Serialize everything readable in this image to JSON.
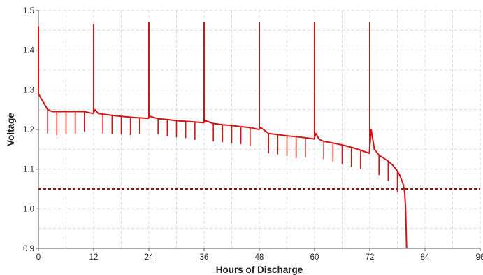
{
  "chart_data": {
    "type": "line",
    "xlabel": "Hours of Discharge",
    "ylabel": "Voltage",
    "xlim": [
      0,
      96
    ],
    "ylim": [
      0.9,
      1.5
    ],
    "x_ticks": [
      "0",
      "12",
      "24",
      "36",
      "48",
      "60",
      "72",
      "84",
      "96"
    ],
    "y_ticks": [
      "0.9",
      "1.0",
      "1.1",
      "1.2",
      "1.3",
      "1.4",
      "1.5"
    ],
    "grid": true,
    "colors": {
      "series": "#d11414",
      "cutoff": "#b00000",
      "grid": "#d9d9d9",
      "axis": "#555555"
    },
    "cutoff_line": {
      "y": 1.05,
      "style": "dashed"
    },
    "series": [
      {
        "x": [
          0,
          0.5,
          1,
          1.5,
          2,
          3,
          4,
          6,
          8,
          10,
          11.9,
          12.3,
          13,
          15,
          18,
          21,
          23.9,
          24.3,
          26,
          28,
          30,
          33,
          35.9,
          36.3,
          38,
          40,
          42,
          44,
          46,
          47.9,
          48.3,
          50,
          52,
          54,
          56,
          58,
          59.9,
          60.3,
          61,
          62,
          64,
          66,
          68,
          70,
          71.9,
          72.3,
          73,
          74,
          75,
          76,
          77,
          78,
          78.5,
          79,
          79.3,
          79.6,
          79.8,
          80
        ],
        "y": [
          1.29,
          1.28,
          1.27,
          1.26,
          1.25,
          1.245,
          1.245,
          1.245,
          1.245,
          1.245,
          1.24,
          1.25,
          1.24,
          1.237,
          1.233,
          1.23,
          1.228,
          1.233,
          1.227,
          1.225,
          1.222,
          1.22,
          1.217,
          1.222,
          1.215,
          1.212,
          1.21,
          1.207,
          1.205,
          1.2,
          1.205,
          1.19,
          1.187,
          1.184,
          1.182,
          1.179,
          1.176,
          1.19,
          1.175,
          1.17,
          1.166,
          1.161,
          1.155,
          1.148,
          1.14,
          1.2,
          1.15,
          1.135,
          1.128,
          1.12,
          1.11,
          1.095,
          1.085,
          1.07,
          1.06,
          1.04,
          1.0,
          0.9
        ],
        "pulses": [
          {
            "x": 0,
            "y": 1.46
          },
          {
            "x": 12,
            "y": 1.465
          },
          {
            "x": 24,
            "y": 1.47
          },
          {
            "x": 36,
            "y": 1.47
          },
          {
            "x": 48,
            "y": 1.47
          },
          {
            "x": 60,
            "y": 1.47
          },
          {
            "x": 72,
            "y": 1.47
          }
        ],
        "dips": [
          {
            "x": 2,
            "y": 1.19
          },
          {
            "x": 4,
            "y": 1.185
          },
          {
            "x": 6,
            "y": 1.188
          },
          {
            "x": 8,
            "y": 1.19
          },
          {
            "x": 10,
            "y": 1.195
          },
          {
            "x": 14,
            "y": 1.19
          },
          {
            "x": 16,
            "y": 1.188
          },
          {
            "x": 18,
            "y": 1.187
          },
          {
            "x": 20,
            "y": 1.186
          },
          {
            "x": 22,
            "y": 1.188
          },
          {
            "x": 26,
            "y": 1.187
          },
          {
            "x": 28,
            "y": 1.183
          },
          {
            "x": 30,
            "y": 1.18
          },
          {
            "x": 32,
            "y": 1.178
          },
          {
            "x": 34,
            "y": 1.174
          },
          {
            "x": 38,
            "y": 1.17
          },
          {
            "x": 40,
            "y": 1.168
          },
          {
            "x": 42,
            "y": 1.165
          },
          {
            "x": 44,
            "y": 1.163
          },
          {
            "x": 46,
            "y": 1.158
          },
          {
            "x": 50,
            "y": 1.14
          },
          {
            "x": 52,
            "y": 1.137
          },
          {
            "x": 54,
            "y": 1.133
          },
          {
            "x": 56,
            "y": 1.128
          },
          {
            "x": 58,
            "y": 1.13
          },
          {
            "x": 62,
            "y": 1.125
          },
          {
            "x": 64,
            "y": 1.12
          },
          {
            "x": 66,
            "y": 1.113
          },
          {
            "x": 68,
            "y": 1.106
          },
          {
            "x": 70,
            "y": 1.1
          },
          {
            "x": 74,
            "y": 1.085
          },
          {
            "x": 76,
            "y": 1.07
          },
          {
            "x": 78,
            "y": 1.042
          }
        ]
      }
    ]
  }
}
